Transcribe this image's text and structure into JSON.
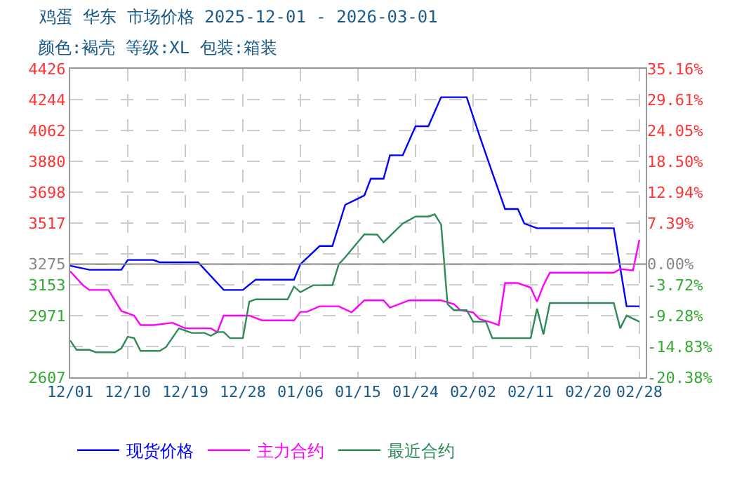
{
  "chart_data": {
    "type": "line",
    "title": "鸡蛋 华东 市场价格 2025-12-01 - 2026-03-01",
    "subtitle": "颜色:褐壳 等级:XL 包装:箱装",
    "xlim": [
      "2025-12-01",
      "2026-03-01"
    ],
    "xticks": [
      {
        "value": "2025-12-01",
        "label": "12/01"
      },
      {
        "value": "2025-12-10",
        "label": "12/10"
      },
      {
        "value": "2025-12-19",
        "label": "12/19"
      },
      {
        "value": "2025-12-28",
        "label": "12/28"
      },
      {
        "value": "2026-01-06",
        "label": "01/06"
      },
      {
        "value": "2026-01-15",
        "label": "01/15"
      },
      {
        "value": "2026-01-24",
        "label": "01/24"
      },
      {
        "value": "2026-02-02",
        "label": "02/02"
      },
      {
        "value": "2026-02-11",
        "label": "02/11"
      },
      {
        "value": "2026-02-20",
        "label": "02/20"
      },
      {
        "value": "2026-02-28",
        "label": "02/28"
      }
    ],
    "ylim": [
      2607,
      4426
    ],
    "yticks": [
      4426,
      4244,
      4062,
      3880,
      3698,
      3517,
      3275,
      3153,
      2971,
      2607
    ],
    "y2lim": [
      -20.38,
      35.16
    ],
    "y2ticks": [
      {
        "value": 35.16,
        "label": "35.16%"
      },
      {
        "value": 29.61,
        "label": "29.61%"
      },
      {
        "value": 24.05,
        "label": "24.05%"
      },
      {
        "value": 18.5,
        "label": "18.50%"
      },
      {
        "value": 12.94,
        "label": "12.94%"
      },
      {
        "value": 7.39,
        "label": "7.39%"
      },
      {
        "value": 1.83,
        "label": null
      },
      {
        "value": 0,
        "label": "0.00%"
      },
      {
        "value": -3.72,
        "label": "-3.72%"
      },
      {
        "value": -9.28,
        "label": "-9.28%"
      },
      {
        "value": -14.83,
        "label": "-14.83%"
      },
      {
        "value": -20.38,
        "label": "-20.38%"
      }
    ],
    "ref_lines": [
      {
        "axis": "y",
        "value": 3275,
        "color": "#888888"
      }
    ],
    "grid": true,
    "legend": "bottom",
    "series": [
      {
        "name": "现货价格",
        "color": "#0000ff",
        "x": [
          "2025-12-01",
          "2025-12-04",
          "2025-12-09",
          "2025-12-10",
          "2025-12-14",
          "2025-12-15",
          "2025-12-21",
          "2025-12-25",
          "2025-12-28",
          "2025-12-30",
          "2026-01-05",
          "2026-01-06",
          "2026-01-09",
          "2026-01-11",
          "2026-01-13",
          "2026-01-16",
          "2026-01-17",
          "2026-01-19",
          "2026-01-20",
          "2026-01-22",
          "2026-01-24",
          "2026-01-26",
          "2026-01-28",
          "2026-02-01",
          "2026-02-03",
          "2026-02-05",
          "2026-02-07",
          "2026-02-09",
          "2026-02-10",
          "2026-02-12",
          "2026-02-24",
          "2026-02-26",
          "2026-02-28"
        ],
        "values": [
          3265,
          3241,
          3241,
          3299,
          3299,
          3285,
          3285,
          3122,
          3122,
          3183,
          3183,
          3274,
          3381,
          3381,
          3624,
          3679,
          3778,
          3778,
          3916,
          3916,
          4087,
          4087,
          4258,
          4258,
          4032,
          3814,
          3599,
          3599,
          3514,
          3486,
          3486,
          3026,
          3026
        ]
      },
      {
        "name": "主力合约",
        "color": "#ff00ff",
        "x": [
          "2025-12-01",
          "2025-12-03",
          "2025-12-04",
          "2025-12-07",
          "2025-12-09",
          "2025-12-11",
          "2025-12-12",
          "2025-12-14",
          "2025-12-17",
          "2025-12-19",
          "2025-12-23",
          "2025-12-24",
          "2025-12-25",
          "2025-12-29",
          "2025-12-31",
          "2026-01-05",
          "2026-01-06",
          "2026-01-07",
          "2026-01-09",
          "2026-01-12",
          "2026-01-14",
          "2026-01-16",
          "2026-01-19",
          "2026-01-20",
          "2026-01-23",
          "2026-01-28",
          "2026-01-30",
          "2026-01-31",
          "2026-02-02",
          "2026-02-03",
          "2026-02-05",
          "2026-02-06",
          "2026-02-07",
          "2026-02-09",
          "2026-02-11",
          "2026-02-12",
          "2026-02-13",
          "2026-02-14",
          "2026-02-24",
          "2026-02-25",
          "2026-02-27",
          "2026-02-28"
        ],
        "values": [
          3232,
          3150,
          3122,
          3122,
          2998,
          2971,
          2915,
          2915,
          2929,
          2896,
          2896,
          2874,
          2971,
          2971,
          2943,
          2943,
          2993,
          2993,
          3026,
          3026,
          2990,
          3061,
          3061,
          3018,
          3061,
          3061,
          3039,
          3003,
          2990,
          2951,
          2929,
          2915,
          3163,
          3163,
          3136,
          3053,
          3150,
          3224,
          3224,
          3246,
          3238,
          3417
        ]
      },
      {
        "name": "最近合约",
        "color": "#2e8b57",
        "x": [
          "2025-12-01",
          "2025-12-02",
          "2025-12-04",
          "2025-12-05",
          "2025-12-08",
          "2025-12-09",
          "2025-12-10",
          "2025-12-11",
          "2025-12-12",
          "2025-12-15",
          "2025-12-16",
          "2025-12-18",
          "2025-12-20",
          "2025-12-22",
          "2025-12-23",
          "2025-12-24",
          "2025-12-25",
          "2025-12-26",
          "2025-12-28",
          "2025-12-29",
          "2025-12-30",
          "2026-01-04",
          "2026-01-05",
          "2026-01-06",
          "2026-01-08",
          "2026-01-11",
          "2026-01-12",
          "2026-01-13",
          "2026-01-16",
          "2026-01-18",
          "2026-01-19",
          "2026-01-22",
          "2026-01-24",
          "2026-01-26",
          "2026-01-27",
          "2026-01-28",
          "2026-01-29",
          "2026-01-30",
          "2026-02-01",
          "2026-02-02",
          "2026-02-04",
          "2026-02-05",
          "2026-02-11",
          "2026-02-12",
          "2026-02-13",
          "2026-02-14",
          "2026-02-24",
          "2026-02-25",
          "2026-02-26",
          "2026-02-28"
        ],
        "values": [
          2824,
          2769,
          2769,
          2755,
          2755,
          2778,
          2846,
          2838,
          2763,
          2763,
          2786,
          2896,
          2869,
          2869,
          2852,
          2874,
          2874,
          2838,
          2838,
          3053,
          3067,
          3067,
          3142,
          3109,
          3150,
          3150,
          3274,
          3315,
          3450,
          3448,
          3403,
          3514,
          3555,
          3555,
          3568,
          3508,
          3039,
          3003,
          3003,
          2935,
          2935,
          2838,
          2838,
          3012,
          2860,
          3045,
          3045,
          2896,
          2971,
          2935
        ]
      }
    ]
  }
}
